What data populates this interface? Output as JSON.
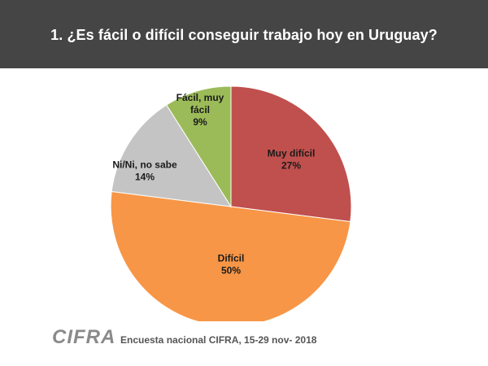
{
  "header": {
    "title": "1. ¿Es fácil o difícil conseguir trabajo hoy en Uruguay?"
  },
  "chart_data": {
    "type": "pie",
    "title": "1. ¿Es fácil o difícil conseguir trabajo hoy en Uruguay?",
    "start_angle_deg": 0,
    "direction": "clockwise",
    "slices": [
      {
        "label": "Muy difícil",
        "value": 27,
        "value_label": "27%",
        "color": "#c0504d"
      },
      {
        "label": "Difícil",
        "value": 50,
        "value_label": "50%",
        "color": "#f79646"
      },
      {
        "label": "Ni/Ni, no sabe",
        "value": 14,
        "value_label": "14%",
        "color": "#c4c4c4"
      },
      {
        "label": "Fácil, muy fácil",
        "value": 9,
        "value_label": "9%",
        "color": "#9bbb59"
      }
    ]
  },
  "footer": {
    "logo_text": "CIFRA",
    "source": "Encuesta nacional CIFRA, 15-29 nov- 2018"
  }
}
